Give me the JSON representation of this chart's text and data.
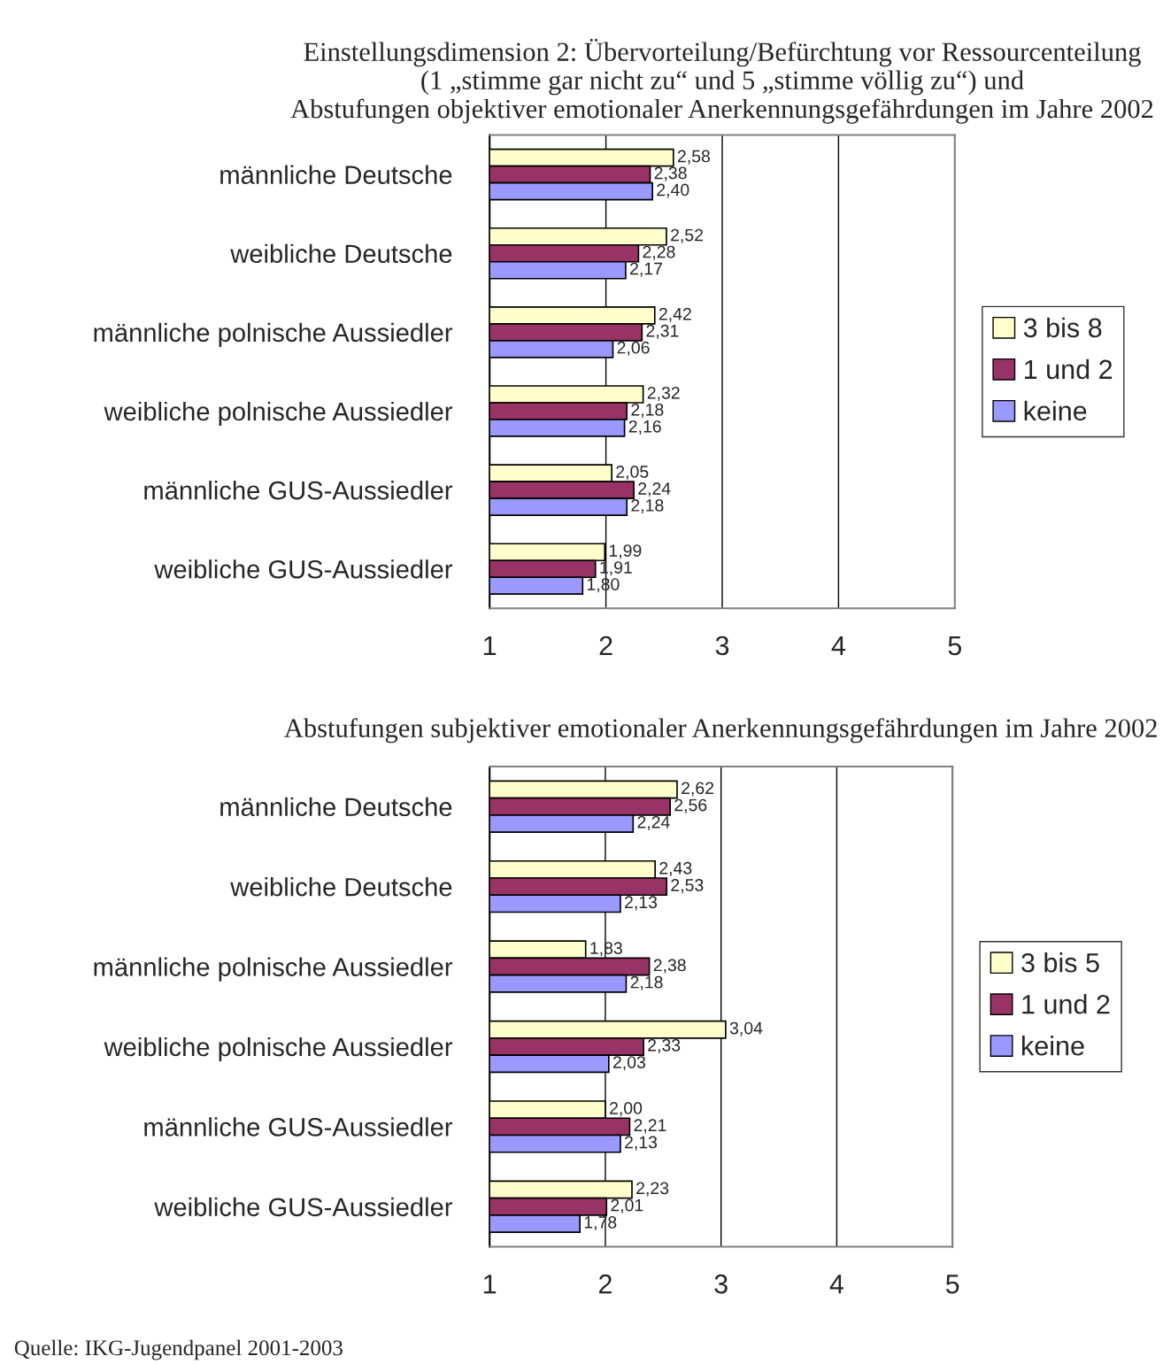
{
  "chart_data": [
    {
      "type": "bar",
      "orientation": "horizontal",
      "title": "Einstellungsdimension 2: Übervorteilung/Befürchtung vor Ressourcenteilung\n(1 „stimme gar nicht zu“ und 5 „stimme völlig zu“) und\nAbstufungen objektiver emotionaler Anerkennungsgefährdungen im Jahre 2002",
      "categories": [
        "männliche Deutsche",
        "weibliche Deutsche",
        "männliche polnische Aussiedler",
        "weibliche polnische Aussiedler",
        "männliche GUS-Aussiedler",
        "weibliche GUS-Aussiedler"
      ],
      "series": [
        {
          "name": "3 bis 8",
          "color": "#ffffcc",
          "values": [
            2.58,
            2.52,
            2.42,
            2.32,
            2.05,
            1.99
          ],
          "value_labels": [
            "2,58",
            "2,52",
            "2,42",
            "2,32",
            "2,05",
            "1,99"
          ]
        },
        {
          "name": "1 und 2",
          "color": "#993366",
          "values": [
            2.38,
            2.28,
            2.31,
            2.18,
            2.24,
            1.91
          ],
          "value_labels": [
            "2,38",
            "2,28",
            "2,31",
            "2,18",
            "2,24",
            "1,91"
          ]
        },
        {
          "name": "keine",
          "color": "#9999ff",
          "values": [
            2.4,
            2.17,
            2.06,
            2.16,
            2.18,
            1.8
          ],
          "value_labels": [
            "2,40",
            "2,17",
            "2,06",
            "2,16",
            "2,18",
            "1,80"
          ]
        }
      ],
      "xlim": [
        1,
        5
      ],
      "xticks": [
        1,
        2,
        3,
        4,
        5
      ],
      "grid": "x",
      "legend": "right"
    },
    {
      "type": "bar",
      "orientation": "horizontal",
      "title": "Abstufungen subjektiver emotionaler Anerkennungsgefährdungen im Jahre 2002",
      "categories": [
        "männliche Deutsche",
        "weibliche Deutsche",
        "männliche polnische Aussiedler",
        "weibliche polnische Aussiedler",
        "männliche GUS-Aussiedler",
        "weibliche GUS-Aussiedler"
      ],
      "series": [
        {
          "name": "3 bis 5",
          "color": "#ffffcc",
          "values": [
            2.62,
            2.43,
            1.83,
            3.04,
            2.0,
            2.23
          ],
          "value_labels": [
            "2,62",
            "2,43",
            "1,83",
            "3,04",
            "2,00",
            "2,23"
          ]
        },
        {
          "name": "1 und 2",
          "color": "#993366",
          "values": [
            2.56,
            2.53,
            2.38,
            2.33,
            2.21,
            2.01
          ],
          "value_labels": [
            "2,56",
            "2,53",
            "2,38",
            "2,33",
            "2,21",
            "2,01"
          ]
        },
        {
          "name": "keine",
          "color": "#9999ff",
          "values": [
            2.24,
            2.13,
            2.18,
            2.03,
            2.13,
            1.78
          ],
          "value_labels": [
            "2,24",
            "2,13",
            "2,18",
            "2,03",
            "2,13",
            "1,78"
          ]
        }
      ],
      "xlim": [
        1,
        5
      ],
      "xticks": [
        1,
        2,
        3,
        4,
        5
      ],
      "grid": "x",
      "legend": "right",
      "annotations": [
        "Quelle: IKG-Jugendpanel 2001-2003"
      ]
    }
  ]
}
